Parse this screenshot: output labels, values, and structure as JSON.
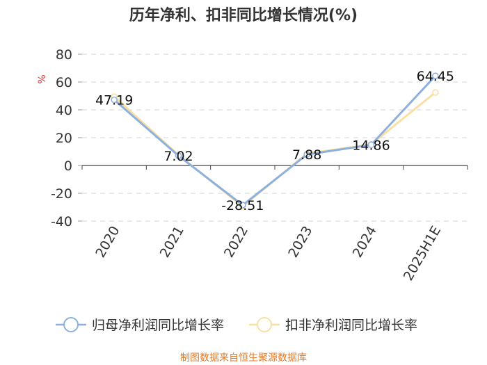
{
  "chart_data": {
    "type": "line",
    "title": "历年净利、扣非同比增长情况(%)",
    "ylabel": "%",
    "categories": [
      "2020",
      "2021",
      "2022",
      "2023",
      "2024",
      "2025H1E"
    ],
    "ylim": [
      -40,
      80
    ],
    "yticks": [
      -40,
      -20,
      0,
      20,
      40,
      60,
      80
    ],
    "grid": true,
    "legend_position": "bottom",
    "series": [
      {
        "name": "归母净利润同比增长率",
        "values": [
          47.19,
          7.02,
          -28.51,
          7.88,
          14.86,
          64.45
        ],
        "color": "#8eb0de",
        "show_labels": true
      },
      {
        "name": "扣非净利润同比增长率",
        "values": [
          49.5,
          7.5,
          -29.5,
          8.5,
          15.2,
          52.5
        ],
        "color": "#f9dfa3",
        "show_labels": false
      }
    ]
  },
  "source": "制图数据来自恒生聚源数据库"
}
